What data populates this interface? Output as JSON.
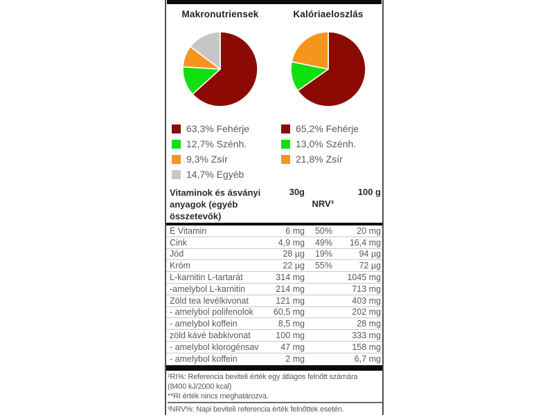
{
  "charts": [
    {
      "title": "Makronutriensek",
      "pcts": [
        63.3,
        12.7,
        9.3,
        14.7
      ],
      "colors": [
        "#8B0B04",
        "#10E010",
        "#F7941E",
        "#C7C7C7"
      ],
      "legend": [
        {
          "swatch": "#8B0B04",
          "text": "63,3% Fehérje"
        },
        {
          "swatch": "#10E010",
          "text": "12,7% Szénh."
        },
        {
          "swatch": "#F7941E",
          "text": "9,3% Zsír"
        },
        {
          "swatch": "#C7C7C7",
          "text": "14,7% Egyéb"
        }
      ]
    },
    {
      "title": "Kalóriaeloszlás",
      "pcts": [
        65.2,
        13.0,
        21.8
      ],
      "colors": [
        "#8B0B04",
        "#10E010",
        "#F7941E"
      ],
      "legend": [
        {
          "swatch": "#8B0B04",
          "text": "65,2% Fehérje"
        },
        {
          "swatch": "#10E010",
          "text": "13,0% Szénh."
        },
        {
          "swatch": "#F7941E",
          "text": "21,8% Zsír"
        }
      ]
    }
  ],
  "table": {
    "header": {
      "name_lines": [
        "Vitaminok és ásványi",
        "anyagok (egyéb",
        "összetevők)"
      ],
      "col_30g": "30g",
      "col_nrv": "NRV³",
      "col_100g": "100 g"
    },
    "rows": [
      {
        "name": "E Vitamin",
        "v30": "6 mg",
        "nrv": "50%",
        "v100": "20 mg"
      },
      {
        "name": "Cink",
        "v30": "4,9 mg",
        "nrv": "49%",
        "v100": "16,4 mg"
      },
      {
        "name": "Jód",
        "v30": "28 µg",
        "nrv": "19%",
        "v100": "94 µg"
      },
      {
        "name": "Króm",
        "v30": "22 µg",
        "nrv": "55%",
        "v100": "72 µg"
      },
      {
        "name": "L-karnitin L-tartarát",
        "v30": "314 mg",
        "nrv": "",
        "v100": "1045 mg"
      },
      {
        "name": "-amelybol L-karnitin",
        "v30": "214 mg",
        "nrv": "",
        "v100": "713 mg"
      },
      {
        "name": "Zöld tea levélkivonat",
        "v30": "121 mg",
        "nrv": "",
        "v100": "403 mg"
      },
      {
        "name": "- amelybol polifenolok",
        "v30": "60,5 mg",
        "nrv": "",
        "v100": "202 mg"
      },
      {
        "name": "- amelybol koffein",
        "v30": "8,5 mg",
        "nrv": "",
        "v100": "28 mg"
      },
      {
        "name": "zöld kávé babkivonat",
        "v30": "100 mg",
        "nrv": "",
        "v100": "333 mg"
      },
      {
        "name": "- amelybol klorogénsav",
        "v30": "47 mg",
        "nrv": "",
        "v100": "158 mg"
      },
      {
        "name": "- amelybol koffein",
        "v30": "2 mg",
        "nrv": "",
        "v100": "6,7 mg"
      }
    ]
  },
  "footnotes": {
    "ri_lines": [
      "²RI%: Referencia beviteli érték egy átlagos felnőtt számára",
      "(8400 kJ/2000 kcal)",
      "**RI érték nincs meghatározva."
    ],
    "nrv_line": "³NRV%: Napi beviteli referencia érték felnőttek esetén."
  },
  "colors": {
    "protein": "#8B0B04",
    "carbs": "#10E010",
    "fat": "#F7941E",
    "other": "#C7C7C7",
    "bars": "#0c0c0c",
    "panel_border": "#4f4f4f",
    "row_separator": "#c8c8c8",
    "body_text": "#58595b",
    "heading_text": "#231f20"
  },
  "chart_data": [
    {
      "type": "pie",
      "title": "Makronutriensek",
      "labels": [
        "Fehérje",
        "Szénh.",
        "Zsír",
        "Egyéb"
      ],
      "values": [
        63.3,
        12.7,
        9.3,
        14.7
      ],
      "unit": "%",
      "colors": [
        "#8B0B04",
        "#10E010",
        "#F7941E",
        "#C7C7C7"
      ],
      "legend_position": "below",
      "start_angle": "top",
      "direction": "clockwise"
    },
    {
      "type": "pie",
      "title": "Kalóriaeloszlás",
      "labels": [
        "Fehérje",
        "Szénh.",
        "Zsír"
      ],
      "values": [
        65.2,
        13.0,
        21.8
      ],
      "unit": "%",
      "colors": [
        "#8B0B04",
        "#10E010",
        "#F7941E"
      ],
      "legend_position": "below",
      "start_angle": "top",
      "direction": "clockwise"
    },
    {
      "type": "table",
      "title": "Vitaminok és ásványi anyagok (egyéb összetevők)",
      "columns": [
        "Vitaminok és ásványi anyagok (egyéb összetevők)",
        "30g",
        "NRV³",
        "100 g"
      ],
      "rows": [
        [
          "E Vitamin",
          "6 mg",
          "50%",
          "20 mg"
        ],
        [
          "Cink",
          "4,9 mg",
          "49%",
          "16,4 mg"
        ],
        [
          "Jód",
          "28 µg",
          "19%",
          "94 µg"
        ],
        [
          "Króm",
          "22 µg",
          "55%",
          "72 µg"
        ],
        [
          "L-karnitin L-tartarát",
          "314 mg",
          "",
          "1045 mg"
        ],
        [
          "-amelybol L-karnitin",
          "214 mg",
          "",
          "713 mg"
        ],
        [
          "Zöld tea levélkivonat",
          "121 mg",
          "",
          "403 mg"
        ],
        [
          "- amelybol polifenolok",
          "60,5 mg",
          "",
          "202 mg"
        ],
        [
          "- amelybol koffein",
          "8,5 mg",
          "",
          "28 mg"
        ],
        [
          "zöld kávé babkivonat",
          "100 mg",
          "",
          "333 mg"
        ],
        [
          "- amelybol klorogénsav",
          "47 mg",
          "",
          "158 mg"
        ],
        [
          "- amelybol koffein",
          "2 mg",
          "",
          "6,7 mg"
        ]
      ]
    }
  ]
}
